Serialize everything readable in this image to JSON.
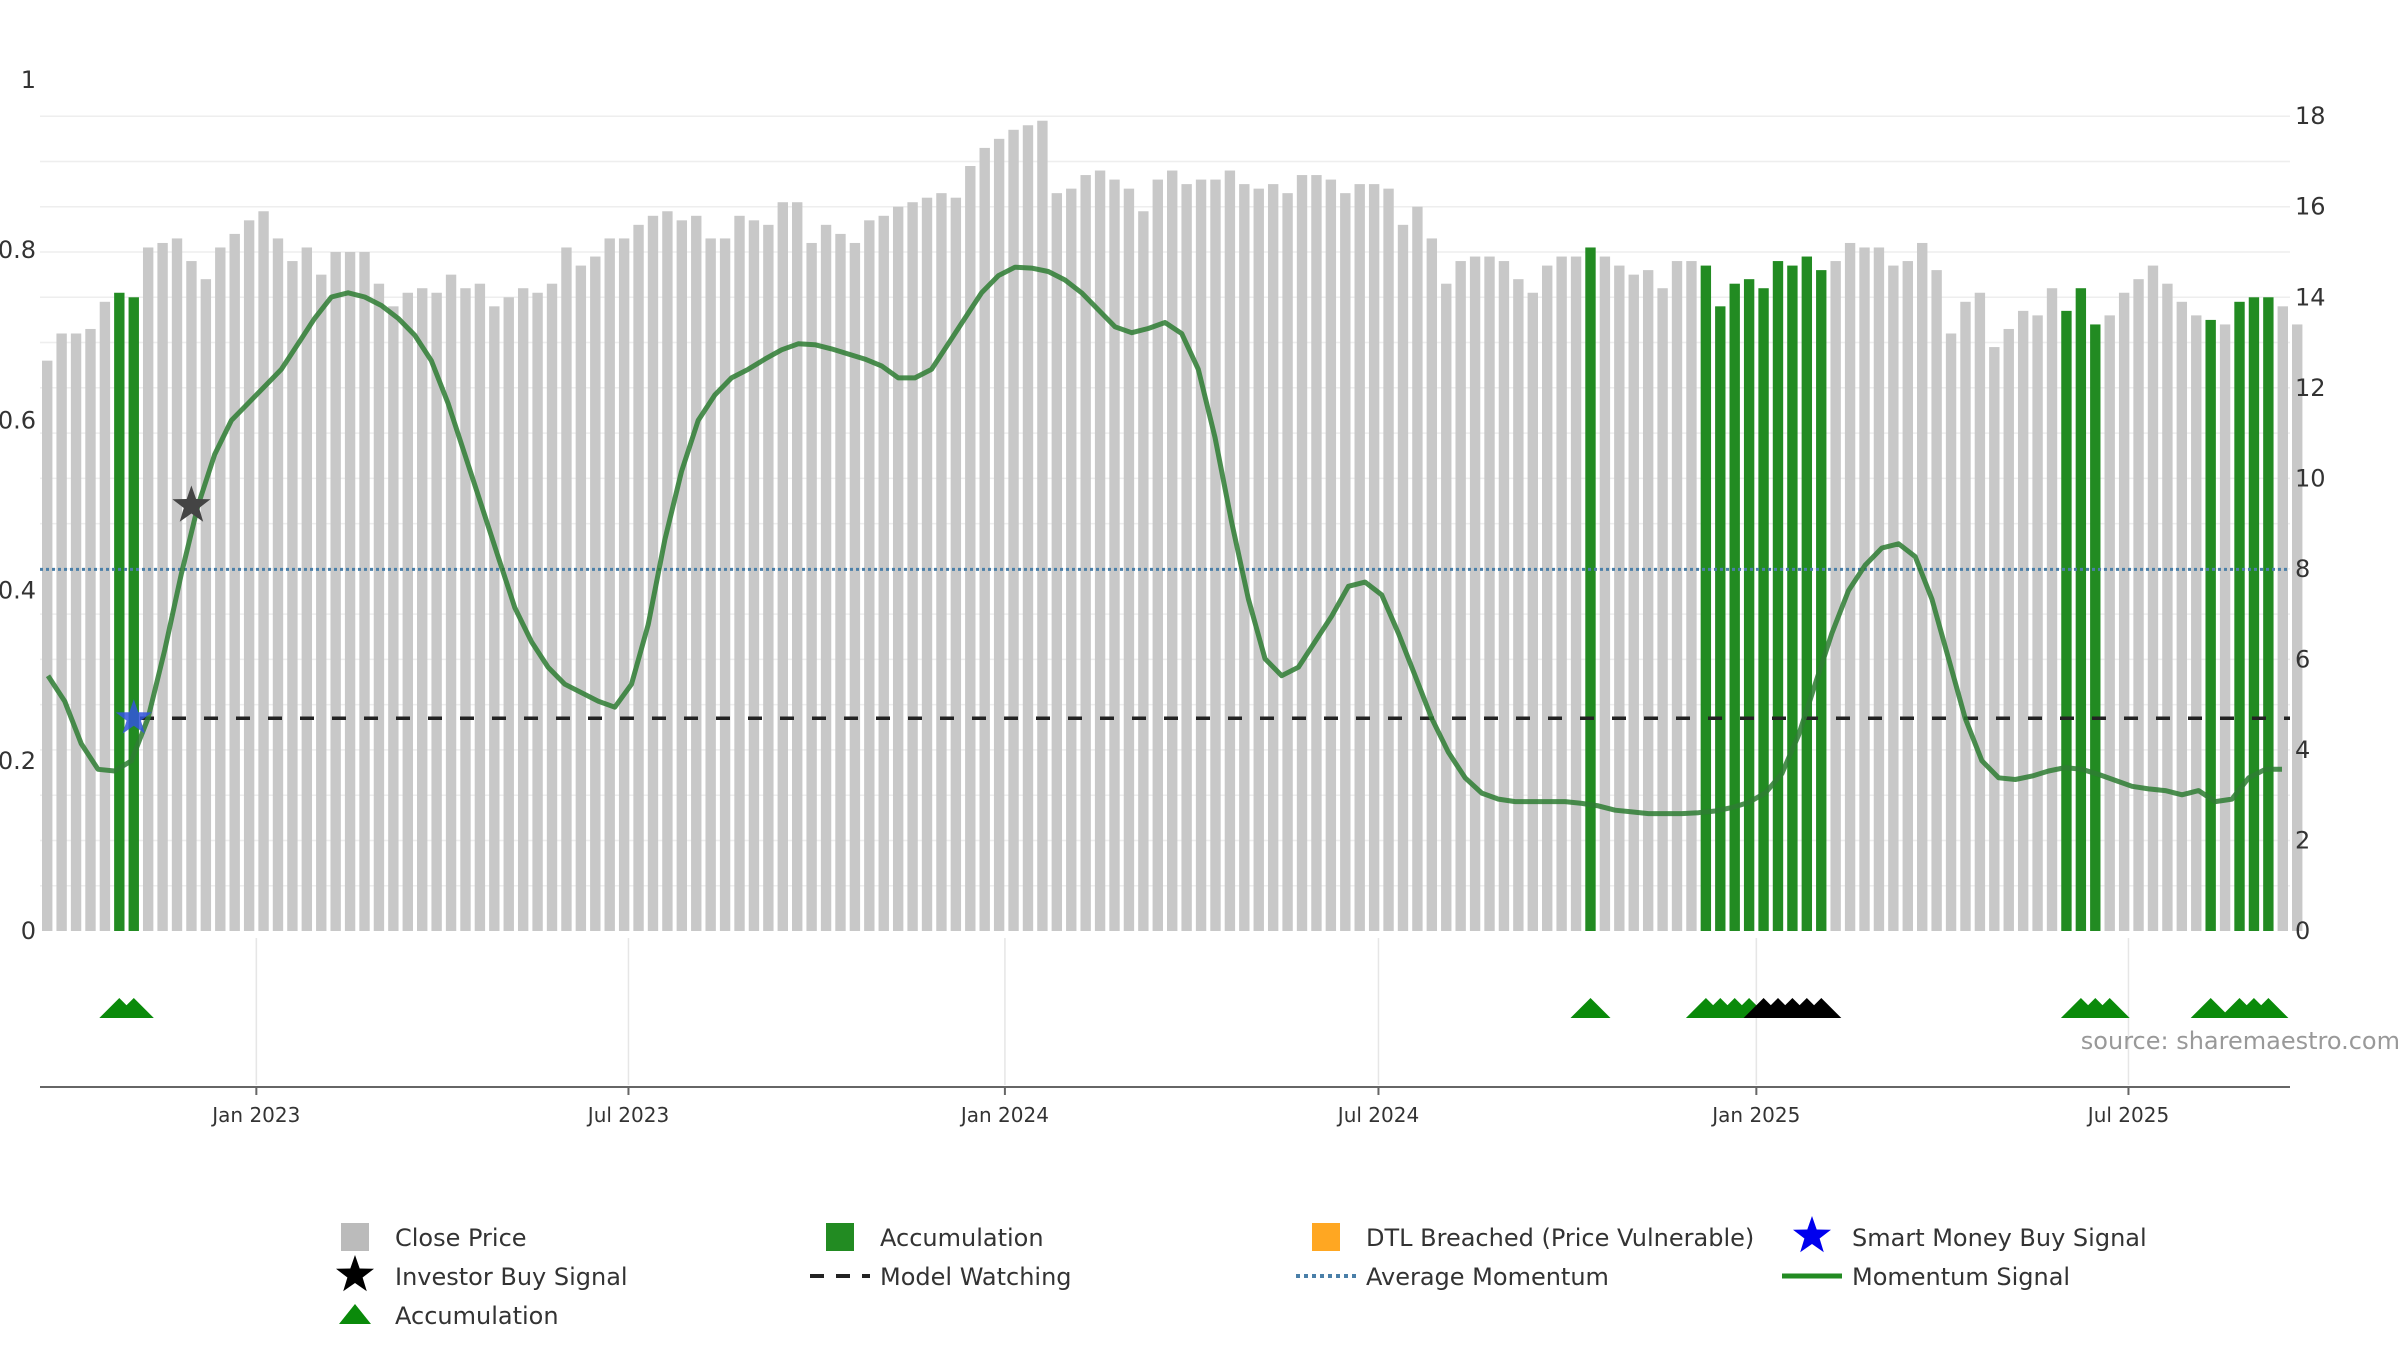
{
  "chart_data": {
    "type": "bar",
    "source_label": "source: sharemaestro.com",
    "left_axis": {
      "ticks": [
        "0",
        "0.2",
        "0.4",
        "0.6",
        "0.8",
        "1"
      ],
      "ylim": [
        0,
        1
      ]
    },
    "right_axis": {
      "ticks": [
        "0",
        "2",
        "4",
        "6",
        "8",
        "10",
        "12",
        "14",
        "16",
        "18"
      ],
      "ylim": [
        0,
        18.8
      ]
    },
    "x_ticks": [
      "Jan 2023",
      "Jul 2023",
      "Jan 2024",
      "Jul 2024",
      "Jan 2025",
      "Jul 2025"
    ],
    "x_tick_weeks": [
      14.5,
      40.3,
      66.4,
      92.3,
      118.5,
      144.3
    ],
    "n_weeks": 156,
    "close_prices": [
      12.6,
      13.2,
      13.2,
      13.3,
      13.9,
      14.1,
      14.0,
      15.1,
      15.2,
      15.3,
      14.8,
      14.4,
      15.1,
      15.4,
      15.7,
      15.9,
      15.3,
      14.8,
      15.1,
      14.5,
      15.0,
      15.0,
      15.0,
      14.3,
      13.8,
      14.1,
      14.2,
      14.1,
      14.5,
      14.2,
      14.3,
      13.8,
      14.0,
      14.2,
      14.1,
      14.3,
      15.1,
      14.7,
      14.9,
      15.3,
      15.3,
      15.6,
      15.8,
      15.9,
      15.7,
      15.8,
      15.3,
      15.3,
      15.8,
      15.7,
      15.6,
      16.1,
      16.1,
      15.2,
      15.6,
      15.4,
      15.2,
      15.7,
      15.8,
      16.0,
      16.1,
      16.2,
      16.3,
      16.2,
      16.9,
      17.3,
      17.5,
      17.7,
      17.8,
      17.9,
      16.3,
      16.4,
      16.7,
      16.8,
      16.6,
      16.4,
      15.9,
      16.6,
      16.8,
      16.5,
      16.6,
      16.6,
      16.8,
      16.5,
      16.4,
      16.5,
      16.3,
      16.7,
      16.7,
      16.6,
      16.3,
      16.5,
      16.5,
      16.4,
      15.6,
      16.0,
      15.3,
      14.3,
      14.8,
      14.9,
      14.9,
      14.8,
      14.4,
      14.1,
      14.7,
      14.9,
      14.9,
      15.1,
      14.9,
      14.7,
      14.5,
      14.6,
      14.2,
      14.8,
      14.8,
      14.7,
      13.8,
      14.3,
      14.4,
      14.2,
      14.8,
      14.7,
      14.9,
      14.6,
      14.8,
      15.2,
      15.1,
      15.1,
      14.7,
      14.8,
      15.2,
      14.6,
      13.2,
      13.9,
      14.1,
      12.9,
      13.3,
      13.7,
      13.6,
      14.2,
      13.7,
      14.2,
      13.4,
      13.6,
      14.1,
      14.4,
      14.7,
      14.3,
      13.9,
      13.6,
      13.5,
      13.4,
      13.9,
      14.0,
      14.0,
      13.8,
      13.4
    ],
    "accumulation_weeks": [
      5,
      6,
      107,
      115,
      116,
      117,
      118,
      119,
      120,
      121,
      122,
      123,
      140,
      141,
      142,
      150,
      152,
      153,
      154
    ],
    "accumulation_triangles_weeks": [
      5,
      6,
      107,
      115,
      116,
      117,
      118,
      150,
      152,
      153,
      154,
      141,
      142,
      143
    ],
    "investor_triangles_weeks": [
      119,
      120,
      121,
      122,
      123
    ],
    "momentum_signal": [
      0.3,
      0.27,
      0.22,
      0.19,
      0.188,
      0.2,
      0.25,
      0.33,
      0.42,
      0.5,
      0.56,
      0.6,
      0.62,
      0.64,
      0.66,
      0.69,
      0.72,
      0.745,
      0.75,
      0.745,
      0.735,
      0.72,
      0.7,
      0.67,
      0.62,
      0.56,
      0.5,
      0.44,
      0.38,
      0.34,
      0.31,
      0.29,
      0.28,
      0.27,
      0.263,
      0.29,
      0.36,
      0.46,
      0.54,
      0.6,
      0.63,
      0.65,
      0.66,
      0.672,
      0.683,
      0.69,
      0.689,
      0.684,
      0.678,
      0.672,
      0.664,
      0.65,
      0.65,
      0.66,
      0.69,
      0.72,
      0.75,
      0.77,
      0.78,
      0.779,
      0.775,
      0.765,
      0.75,
      0.73,
      0.71,
      0.703,
      0.708,
      0.715,
      0.702,
      0.66,
      0.58,
      0.48,
      0.39,
      0.32,
      0.3,
      0.31,
      0.34,
      0.37,
      0.405,
      0.41,
      0.395,
      0.35,
      0.3,
      0.25,
      0.21,
      0.18,
      0.162,
      0.155,
      0.152,
      0.152,
      0.152,
      0.152,
      0.15,
      0.147,
      0.142,
      0.14,
      0.138,
      0.138,
      0.138,
      0.139,
      0.141,
      0.145,
      0.151,
      0.162,
      0.185,
      0.23,
      0.29,
      0.35,
      0.4,
      0.43,
      0.45,
      0.455,
      0.44,
      0.39,
      0.32,
      0.25,
      0.2,
      0.18,
      0.178,
      0.182,
      0.188,
      0.192,
      0.19,
      0.184,
      0.177,
      0.17,
      0.167,
      0.165,
      0.16,
      0.165,
      0.152,
      0.155,
      0.18,
      0.19,
      0.19
    ],
    "average_momentum": 0.425,
    "model_watching": 0.25,
    "investor_buy_signal": {
      "week": 10,
      "value": 0.5
    },
    "smart_money_buy_signal": {
      "week": 6,
      "value": 0.25
    },
    "legend": [
      {
        "label": "Close Price",
        "symbol": "square",
        "color": "#bbbbbb"
      },
      {
        "label": "Accumulation",
        "symbol": "square",
        "color": "#228b22"
      },
      {
        "label": "DTL Breached (Price Vulnerable)",
        "symbol": "square",
        "color": "#ffa722"
      },
      {
        "label": "Smart Money Buy Signal",
        "symbol": "star",
        "color": "#0000ee"
      },
      {
        "label": "Investor Buy Signal",
        "symbol": "star",
        "color": "#000000"
      },
      {
        "label": "Model Watching",
        "symbol": "dash",
        "color": "#222222"
      },
      {
        "label": "Average Momentum",
        "symbol": "dots",
        "color": "#4a7fa8"
      },
      {
        "label": "Momentum Signal",
        "symbol": "line",
        "color": "#228b22"
      },
      {
        "label": "Accumulation",
        "symbol": "triangle",
        "color": "#0a8a0a"
      }
    ]
  }
}
